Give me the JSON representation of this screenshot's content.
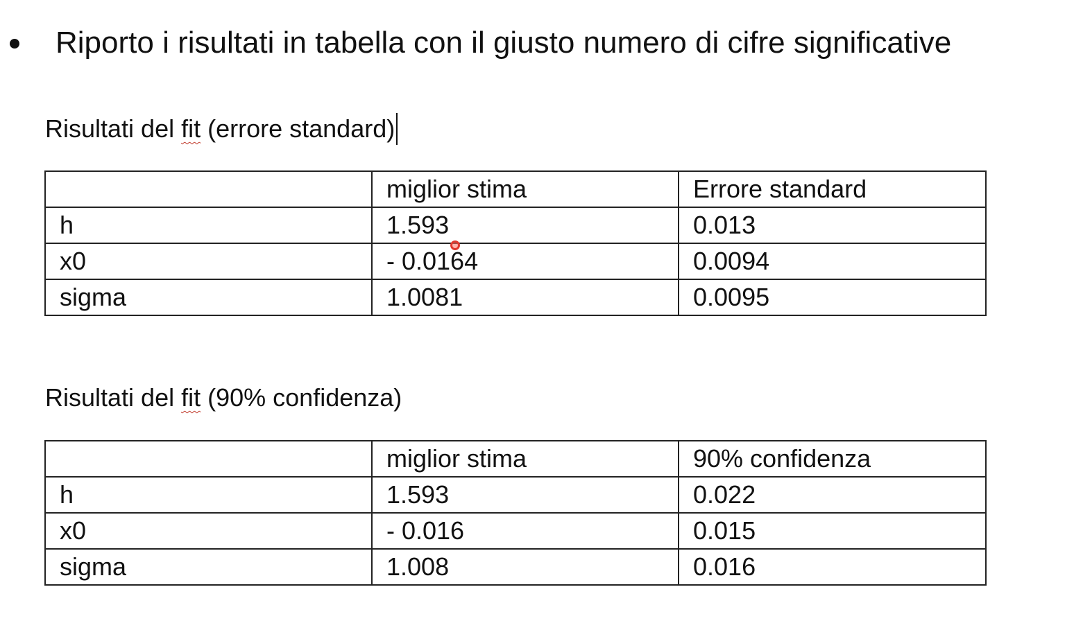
{
  "bullet": {
    "text": "Riporto i risultati in tabella con il giusto numero di cifre significative"
  },
  "sections": [
    {
      "caption_prefix": "Risultati del ",
      "caption_fit": "fit",
      "caption_suffix": " (errore standard)",
      "headers": [
        "",
        "miglior stima",
        "Errore standard"
      ],
      "rows": [
        [
          "h",
          "1.593",
          "0.013"
        ],
        [
          "x0",
          "- 0.0164",
          "0.0094"
        ],
        [
          "sigma",
          "1.0081",
          "0.0095"
        ]
      ]
    },
    {
      "caption_prefix": "Risultati del ",
      "caption_fit": "fit",
      "caption_suffix": " (90% confidenza)",
      "headers": [
        "",
        "miglior stima",
        "90% confidenza"
      ],
      "rows": [
        [
          "h",
          "1.593",
          "0.022"
        ],
        [
          "x0",
          "- 0.016",
          "0.015"
        ],
        [
          "sigma",
          "1.008",
          "0.016"
        ]
      ]
    }
  ],
  "colors": {
    "text": "#111111",
    "border": "#222222",
    "spellcheck_underline": "#c0392b",
    "cursor_highlight": "#e0392f"
  }
}
